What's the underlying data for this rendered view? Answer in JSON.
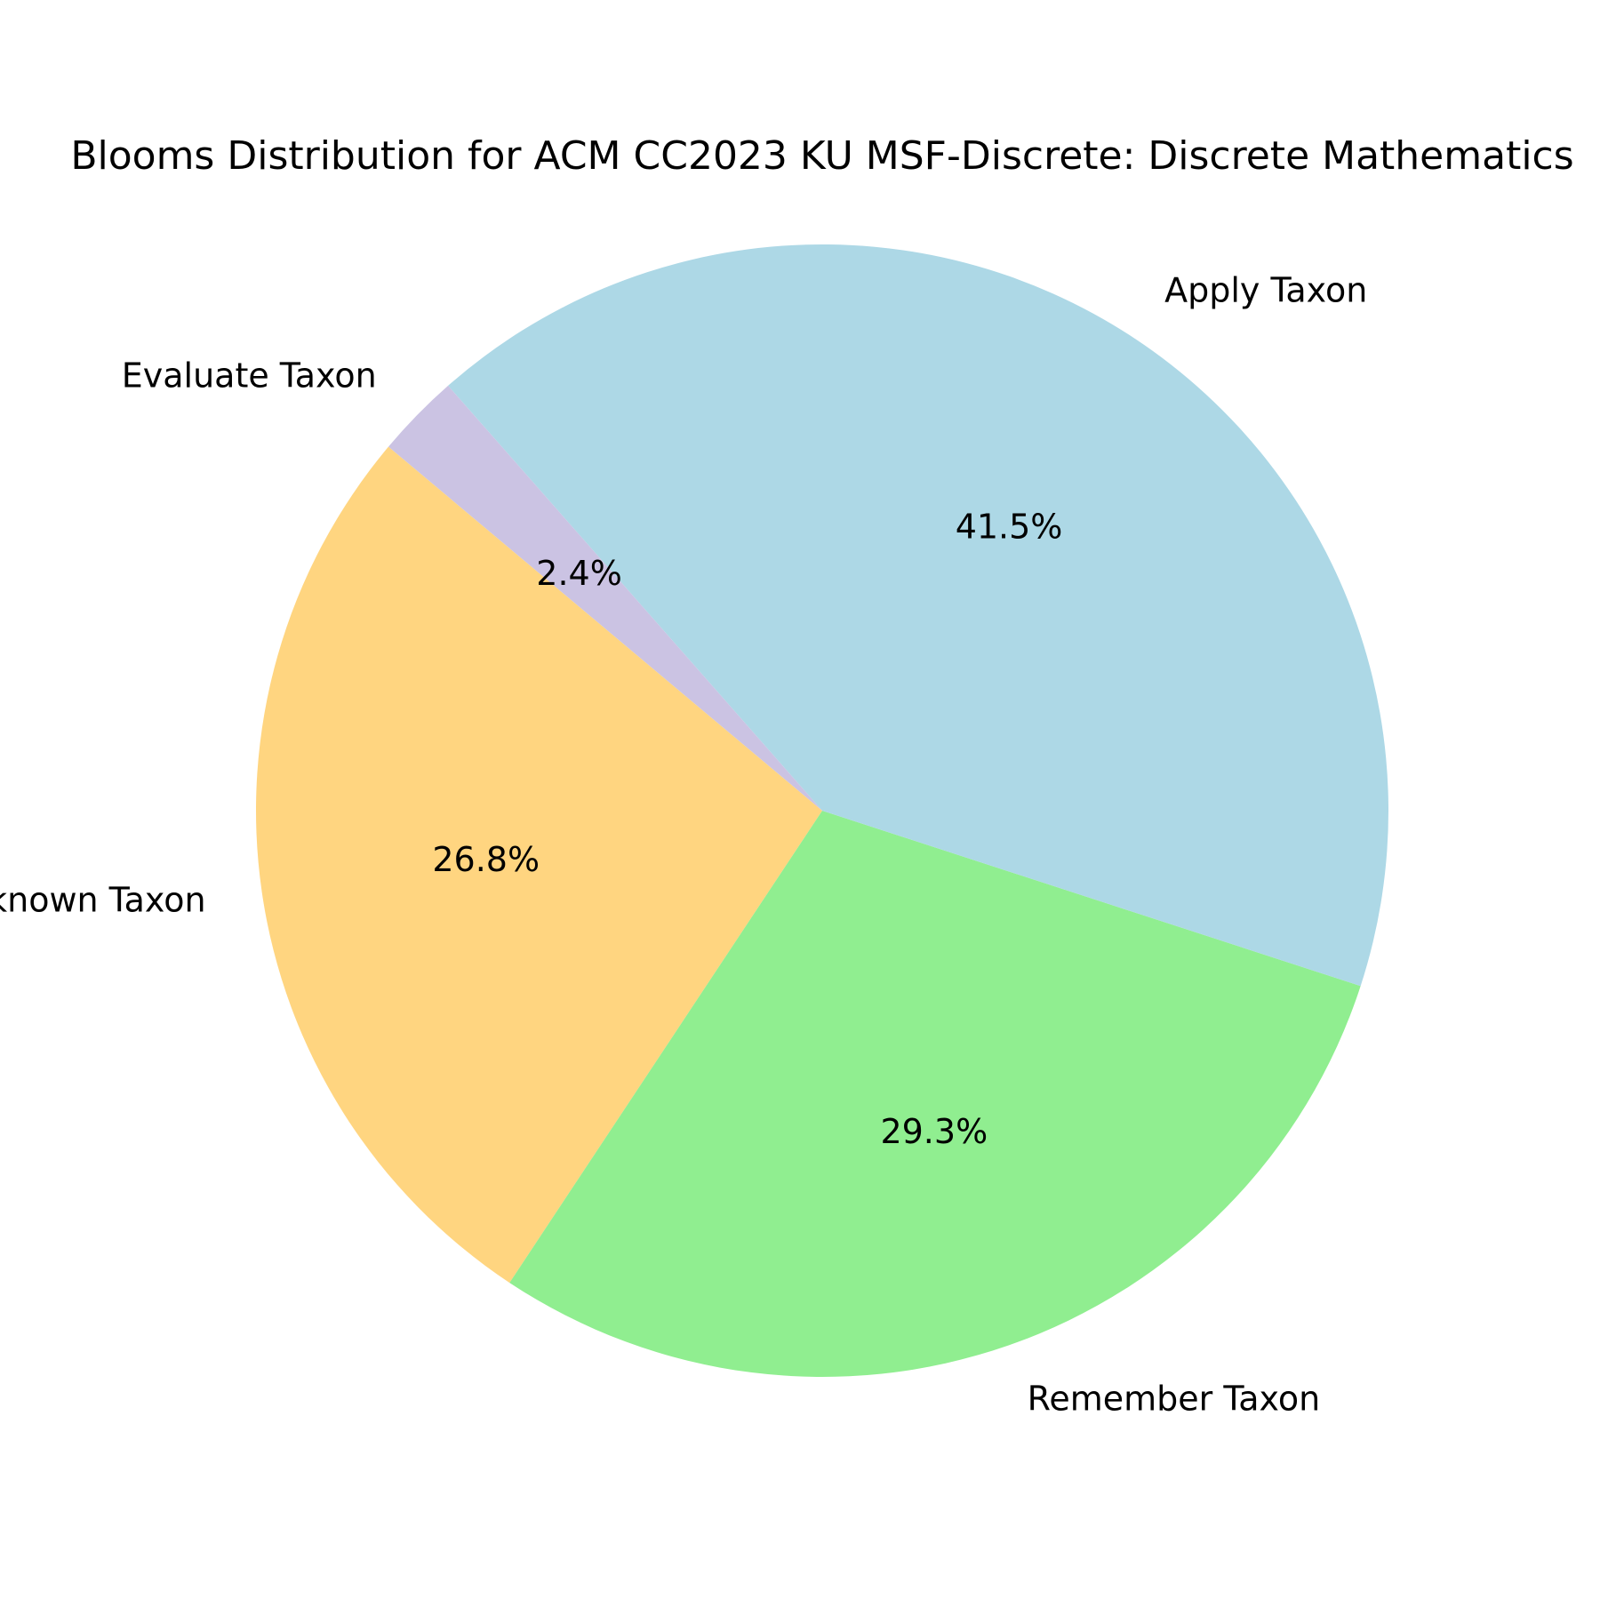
{
  "chart_data": {
    "type": "pie",
    "title": "Blooms Distribution for ACM CC2023 KU MSF-Discrete: Discrete Mathematics",
    "start_angle_deg": 140,
    "direction": "counterclockwise",
    "slices": [
      {
        "label": "Unknown Taxon",
        "value": 26.8,
        "pct_label": "26.8%",
        "color": "#ffd580"
      },
      {
        "label": "Remember Taxon",
        "value": 29.3,
        "pct_label": "29.3%",
        "color": "#90ee90"
      },
      {
        "label": "Apply Taxon",
        "value": 41.5,
        "pct_label": "41.5%",
        "color": "#add8e6"
      },
      {
        "label": "Evaluate Taxon",
        "value": 2.4,
        "pct_label": "2.4%",
        "color": "#cbc3e3"
      }
    ]
  }
}
